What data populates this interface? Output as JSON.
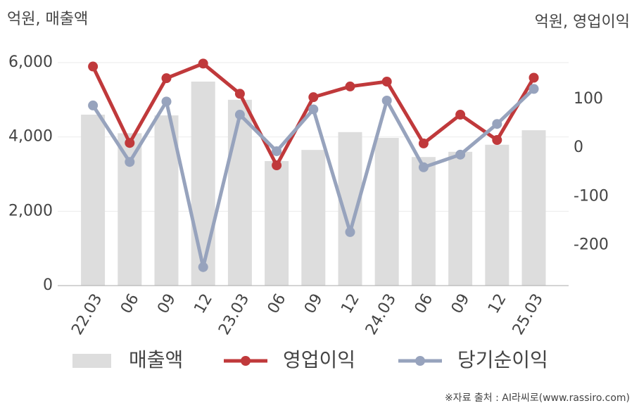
{
  "chart_data": {
    "type": "bar_line",
    "y_title": "억원, 매출액",
    "y2_title": "억원, 영업이익",
    "source": "※자료 출처 : AI라씨로(www.rassiro.com)",
    "categories": [
      "22.03",
      "06",
      "09",
      "12",
      "23.03",
      "06",
      "09",
      "12",
      "24.03",
      "06",
      "09",
      "12",
      "25.03"
    ],
    "series": [
      {
        "name": "매출액",
        "type": "bar",
        "color": "#dddddd",
        "values": [
          4600,
          4100,
          4580,
          5490,
          5000,
          3350,
          3650,
          4130,
          3975,
          3460,
          3600,
          3790,
          4180
        ]
      },
      {
        "name": "영업이익",
        "type": "line",
        "axis": "y2",
        "color": "#c0393b",
        "values": [
          167,
          10,
          143,
          173,
          111,
          -36,
          104,
          126,
          136,
          9,
          68,
          16,
          144
        ]
      },
      {
        "name": "당기순이익",
        "type": "line",
        "axis": "y2",
        "color": "#97a3bd",
        "values": [
          87,
          -29,
          95,
          -245,
          68,
          -7,
          79,
          -173,
          97,
          -40,
          -14,
          49,
          121
        ]
      }
    ],
    "ylim": [
      0,
      6000
    ],
    "yticks": [
      0,
      {
        "value": 2000,
        "label": "2,000"
      },
      {
        "value": 4000,
        "label": "4,000"
      },
      {
        "value": 6000,
        "label": "6,000"
      }
    ],
    "y2lim": [
      -283,
      175
    ],
    "y2ticks": [
      -200,
      -100,
      0,
      100
    ],
    "grid": true
  }
}
